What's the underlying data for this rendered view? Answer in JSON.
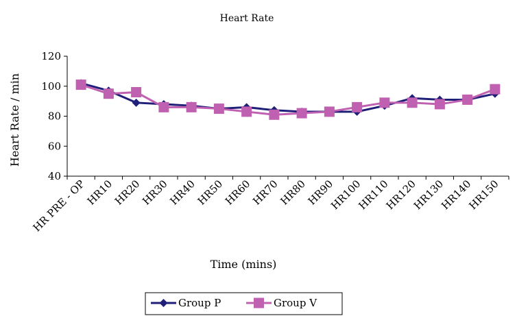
{
  "chart_data": {
    "type": "line",
    "title": "Heart Rate",
    "xlabel": "Time (mins)",
    "ylabel": "Heart Rate / min",
    "ylim": [
      40,
      120
    ],
    "yticks": [
      40,
      60,
      80,
      100,
      120
    ],
    "grid": false,
    "legend": "bottom",
    "categories": [
      "HR PRE - OP",
      "HR10",
      "HR20",
      "HR30",
      "HR40",
      "HR50",
      "HR60",
      "HR70",
      "HR80",
      "HR90",
      "HR100",
      "HR110",
      "HR120",
      "HR130",
      "HR140",
      "HR150"
    ],
    "series": [
      {
        "name": "Group P",
        "color": "#1f1f7a",
        "marker": "diamond",
        "values": [
          102,
          97,
          89,
          88,
          87,
          85,
          86,
          84,
          83,
          83,
          83,
          87,
          92,
          91,
          91,
          95
        ]
      },
      {
        "name": "Group V",
        "color": "#c060b0",
        "marker": "square",
        "values": [
          101,
          95,
          96,
          86,
          86,
          85,
          83,
          81,
          82,
          83,
          86,
          89,
          89,
          88,
          91,
          98
        ]
      }
    ]
  }
}
